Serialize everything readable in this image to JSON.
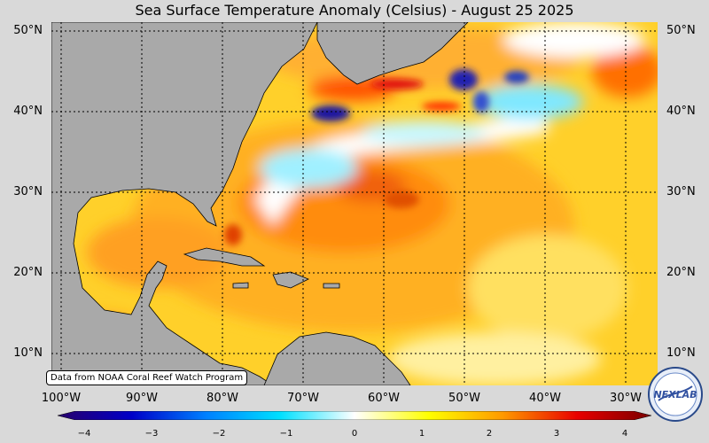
{
  "title": "Sea Surface Temperature Anomaly (Celsius) - August 25 2025",
  "lat_labels": [
    "50°N",
    "40°N",
    "30°N",
    "20°N",
    "10°N"
  ],
  "lon_labels": [
    "100°W",
    "90°W",
    "80°W",
    "70°W",
    "60°W",
    "50°W",
    "40°W",
    "30°W"
  ],
  "credit": "Data from NOAA Coral Reef Watch Program",
  "colorbar": {
    "ticks": [
      "−4",
      "−3",
      "−2",
      "−1",
      "0",
      "1",
      "2",
      "3",
      "4"
    ],
    "min": -4,
    "max": 4,
    "colors": [
      "#28006b",
      "#0000c8",
      "#0080ff",
      "#00e0ff",
      "#ffffff",
      "#ffff00",
      "#ff9900",
      "#e80000",
      "#7a0000"
    ]
  },
  "logo_text": "NEXLAB",
  "colors": {
    "land": "#a9a9a9",
    "background": "#d9d9d9"
  }
}
